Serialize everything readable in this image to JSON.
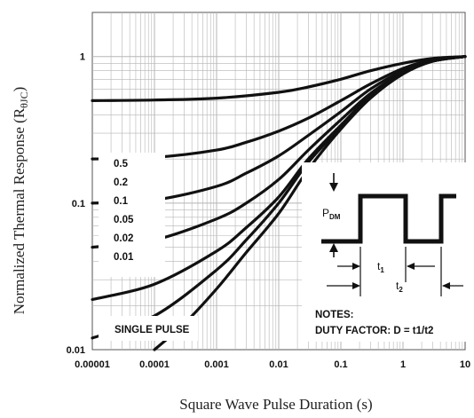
{
  "chart_data": {
    "type": "line",
    "title": "",
    "xlabel": "Square Wave Pulse Duration (s)",
    "ylabel": "Normalized Thermal Response (R",
    "ylabel_sub": "θJC",
    "ylabel_close": ")",
    "x_scale": "log",
    "y_scale": "log",
    "xlim": [
      1e-05,
      10
    ],
    "ylim": [
      0.01,
      2
    ],
    "grid": true,
    "x_ticks": [
      "0.00001",
      "0.0001",
      "0.001",
      "0.01",
      "0.1",
      "1",
      "10"
    ],
    "x_tick_values": [
      1e-05,
      0.0001,
      0.001,
      0.01,
      0.1,
      1,
      10
    ],
    "y_ticks": [
      "0.01",
      "0.1",
      "1"
    ],
    "y_tick_values": [
      0.01,
      0.1,
      1
    ],
    "series": [
      {
        "name": "0.5",
        "x": [
          1e-05,
          0.0001,
          0.001,
          0.01,
          0.03,
          0.1,
          0.3,
          1,
          3,
          10
        ],
        "y": [
          0.5,
          0.505,
          0.52,
          0.57,
          0.62,
          0.7,
          0.8,
          0.9,
          0.97,
          1.0
        ]
      },
      {
        "name": "0.2",
        "x": [
          1e-05,
          0.0001,
          0.001,
          0.003,
          0.01,
          0.03,
          0.1,
          0.3,
          1,
          3,
          10
        ],
        "y": [
          0.2,
          0.205,
          0.23,
          0.26,
          0.31,
          0.38,
          0.5,
          0.65,
          0.83,
          0.95,
          1.0
        ]
      },
      {
        "name": "0.1",
        "x": [
          1e-05,
          0.0001,
          0.001,
          0.003,
          0.01,
          0.03,
          0.1,
          0.3,
          1,
          3,
          10
        ],
        "y": [
          0.1,
          0.105,
          0.13,
          0.16,
          0.21,
          0.29,
          0.42,
          0.6,
          0.8,
          0.94,
          1.0
        ]
      },
      {
        "name": "0.05",
        "x": [
          1e-05,
          0.0001,
          0.001,
          0.003,
          0.01,
          0.03,
          0.1,
          0.3,
          1,
          3,
          10
        ],
        "y": [
          0.05,
          0.056,
          0.078,
          0.1,
          0.145,
          0.23,
          0.37,
          0.56,
          0.78,
          0.93,
          1.0
        ]
      },
      {
        "name": "0.02",
        "x": [
          1e-05,
          0.0001,
          0.001,
          0.003,
          0.01,
          0.03,
          0.1,
          0.3,
          1,
          3,
          10
        ],
        "y": [
          0.022,
          0.028,
          0.047,
          0.068,
          0.11,
          0.2,
          0.34,
          0.54,
          0.77,
          0.93,
          1.0
        ]
      },
      {
        "name": "0.01",
        "x": [
          1e-05,
          0.0001,
          0.001,
          0.003,
          0.01,
          0.03,
          0.1,
          0.3,
          1,
          3,
          10
        ],
        "y": [
          0.012,
          0.017,
          0.035,
          0.056,
          0.1,
          0.19,
          0.33,
          0.53,
          0.77,
          0.93,
          1.0
        ]
      },
      {
        "name": "SINGLE PULSE",
        "x": [
          0.0001,
          0.0003,
          0.001,
          0.003,
          0.01,
          0.03,
          0.1,
          0.3,
          1,
          3,
          10
        ],
        "y": [
          0.0085,
          0.015,
          0.026,
          0.046,
          0.085,
          0.17,
          0.32,
          0.52,
          0.76,
          0.93,
          1.0
        ]
      }
    ],
    "legend_labels": [
      "0.5",
      "0.2",
      "0.1",
      "0.05",
      "0.02",
      "0.01",
      "SINGLE PULSE"
    ],
    "inset": {
      "pdm_label": "P",
      "pdm_sub": "DM",
      "t1_label": "t",
      "t1_sub": "1",
      "t2_label": "t",
      "t2_sub": "2",
      "notes_title": "NOTES:",
      "notes_text": "DUTY FACTOR: D = t1/t2"
    }
  },
  "colors": {
    "line": "#111111",
    "grid": "#b5b5b5",
    "axis": "#555555"
  }
}
